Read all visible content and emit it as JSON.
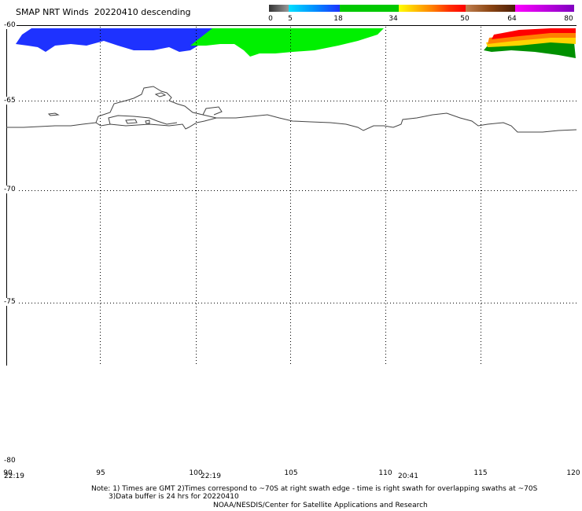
{
  "header": {
    "title": "SMAP NRT Winds  20220410 descending"
  },
  "color_scale": {
    "labels": [
      "0",
      "5",
      "18",
      "34",
      "50",
      "64",
      "80"
    ],
    "colors": {
      "gray": "#555555",
      "cyan": "#00c8ff",
      "blue": "#1e32ff",
      "green": "#00c800",
      "yellow": "#ffff00",
      "orange": "#ff9900",
      "red": "#ff0000",
      "brown": "#8b4513",
      "magenta": "#ff00ff",
      "purple": "#8000c0"
    }
  },
  "map": {
    "lat_labels": [
      "-60",
      "-65",
      "-70",
      "-75",
      "-80"
    ],
    "lon_labels": [
      "90",
      "95",
      "100",
      "105",
      "110",
      "115",
      "120"
    ],
    "time_labels": [
      "22:19",
      "22:19",
      "20:41"
    ],
    "swath_colors": {
      "blue": "#1e32ff",
      "green": "#00f000",
      "yellow": "#ffd400",
      "orange": "#ff8000",
      "red": "#ff0000",
      "dark_green": "#009000"
    }
  },
  "footer": {
    "note_line1": "Note: 1) Times are GMT 2)Times correspond to ~70S at right swath edge - time is right swath for overlapping swaths at ~70S",
    "note_line2": "3)Data buffer is 24 hrs for 20220410",
    "credit": "NOAA/NESDIS/Center for Satellite Applications and Research"
  }
}
